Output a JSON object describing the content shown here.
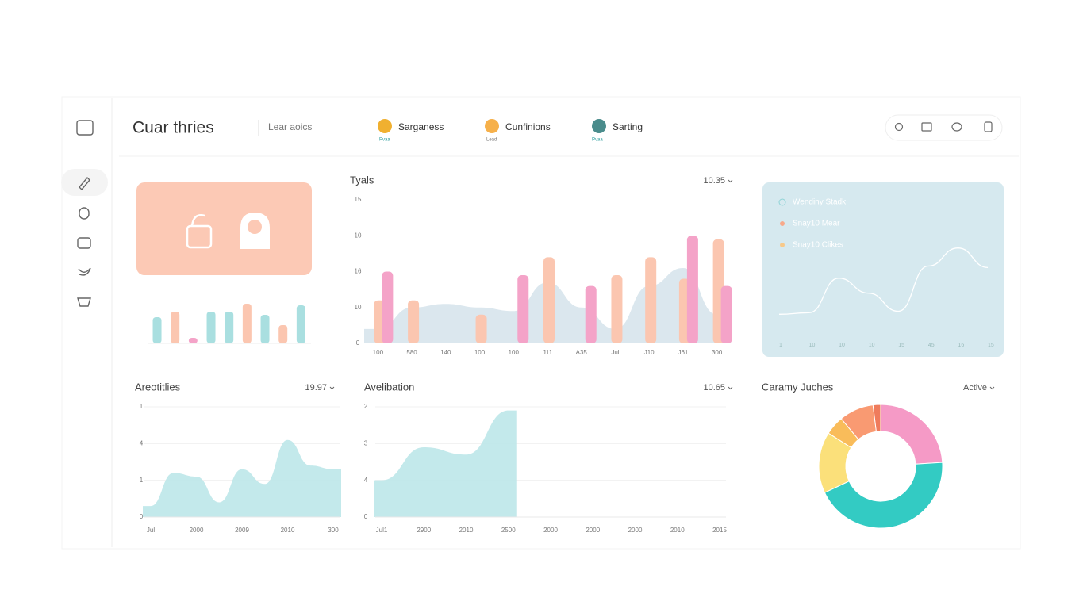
{
  "header": {
    "title": "Cuar thries",
    "subtitle": "Lear aoics",
    "users": [
      {
        "name": "Sarganess",
        "role": "Pvaa"
      },
      {
        "name": "Cunfinions",
        "role": "Lead"
      },
      {
        "name": "Sarting",
        "role": "Pvaa"
      }
    ]
  },
  "chart_data": [
    {
      "type": "bar",
      "values": [
        33,
        40,
        7,
        40,
        40,
        50,
        36,
        23,
        48
      ],
      "colors": [
        "#a9dfe0",
        "#fbc6b0",
        "#f4a3c8",
        "#a9dfe0",
        "#a9dfe0",
        "#fbc6b0",
        "#a9dfe0",
        "#fbc6b0",
        "#a9dfe0"
      ],
      "ylim": [
        0,
        50
      ]
    },
    {
      "type": "bar",
      "title": "Tyals",
      "control": "10.35",
      "categories": [
        "100",
        "580",
        "140",
        "100",
        "100",
        "J11",
        "A35",
        "Jul",
        "J10",
        "J61",
        "300"
      ],
      "ylim": [
        0,
        40
      ],
      "yticks": [
        0,
        10,
        {
          "value": 20,
          "label": "16"
        },
        {
          "value": 30,
          "label": "10"
        },
        {
          "value": 40,
          "label": "15"
        }
      ],
      "area": {
        "color": "#dbe7ee",
        "values": [
          4,
          10,
          11,
          10,
          9,
          17,
          10,
          4,
          16,
          21,
          8
        ]
      },
      "series": [
        {
          "color": "#fbc6b0",
          "values": [
            12,
            12,
            null,
            8,
            null,
            24,
            null,
            19,
            24,
            18,
            29
          ]
        },
        {
          "color": "#f4a3c8",
          "values": [
            20,
            null,
            null,
            null,
            19,
            null,
            16,
            null,
            null,
            30,
            16
          ]
        }
      ]
    },
    {
      "type": "line",
      "categories": [
        "1",
        "10",
        "10",
        "10",
        "15",
        "45",
        "16",
        "15"
      ],
      "ylim": [
        0,
        100
      ],
      "legend": [
        {
          "name": "Wendiny Stadk",
          "color": "#8fd3d6"
        },
        {
          "name": "Snay10 Mear",
          "color": "#f7a98a"
        },
        {
          "name": "Snay10 Clikes",
          "color": "#f7c98a"
        }
      ],
      "series": [
        {
          "color": "#ffffff",
          "values": [
            23,
            24,
            47,
            37,
            25,
            55,
            67,
            54
          ]
        }
      ]
    },
    {
      "type": "area",
      "title": "Areotitlies",
      "control": "19.97",
      "categories": [
        "Jul",
        null,
        "2000",
        null,
        "2009",
        null,
        "2010",
        null,
        "300"
      ],
      "ylim": [
        0,
        3
      ],
      "grid": true,
      "yticks": [
        0,
        1,
        {
          "value": 2,
          "label": "4"
        },
        {
          "value": 3,
          "label": "1"
        }
      ],
      "series": [
        {
          "color": "#b8e5e7",
          "values": [
            0.3,
            1.2,
            1.1,
            0.4,
            1.3,
            0.9,
            2.1,
            1.4,
            1.3
          ]
        }
      ]
    },
    {
      "type": "area",
      "title": "Avelibation",
      "control": "10.65",
      "categories": [
        "Jul1",
        "2900",
        "2010",
        "2500",
        "2000",
        "2000",
        "2000",
        "2010",
        "2015"
      ],
      "ylim": [
        0,
        3
      ],
      "grid": true,
      "yticks": [
        0,
        {
          "value": 1,
          "label": "4"
        },
        {
          "value": 2,
          "label": "3"
        },
        {
          "value": 3,
          "label": "2"
        }
      ],
      "series": [
        {
          "color": "#b8e5e7",
          "values": [
            1.0,
            1.9,
            1.7,
            2.9,
            null,
            null,
            null,
            null,
            null
          ]
        }
      ]
    },
    {
      "type": "donut",
      "title": "Caramy Juches",
      "control": "Active",
      "values": [
        24,
        44,
        16,
        5,
        9,
        2
      ],
      "colors": [
        "#f59ac6",
        "#33cbc3",
        "#fbe07a",
        "#f9bc5a",
        "#f99a72",
        "#ef7b5c"
      ]
    }
  ]
}
